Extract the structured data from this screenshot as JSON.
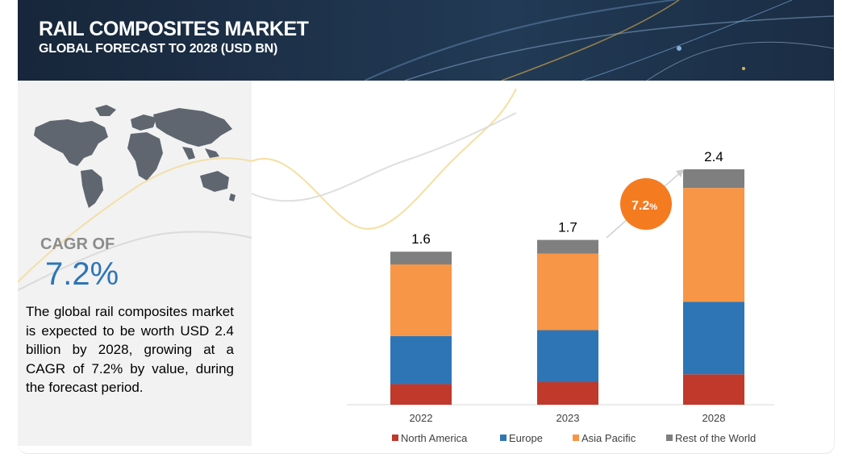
{
  "header": {
    "title": "RAIL COMPOSITES MARKET",
    "subtitle": "GLOBAL FORECAST TO 2028 (USD BN)"
  },
  "left_panel": {
    "cagr_label": "CAGR OF",
    "cagr_value": "7.2%",
    "description": "The global rail composites market is expected to be worth USD 2.4 billion by 2028, growing at a CAGR of 7.2% by value, during the forecast period."
  },
  "badge": {
    "value": "7.2",
    "unit": "%"
  },
  "colors": {
    "north_america": "#c0392b",
    "europe": "#2e75b6",
    "asia_pacific": "#f79646",
    "rest_of_world": "#7f7f7f",
    "badge": "#f47b20",
    "cagr_text": "#2e75b6"
  },
  "chart_data": {
    "type": "bar",
    "stacked": true,
    "categories": [
      "2022",
      "2023",
      "2028"
    ],
    "totals": [
      "1.6",
      "1.7",
      "2.4"
    ],
    "series": [
      {
        "name": "North America",
        "values": [
          0.21,
          0.23,
          0.31
        ]
      },
      {
        "name": "Europe",
        "values": [
          0.49,
          0.53,
          0.74
        ]
      },
      {
        "name": "Asia Pacific",
        "values": [
          0.73,
          0.78,
          1.16
        ]
      },
      {
        "name": "Rest of the World",
        "values": [
          0.13,
          0.14,
          0.19
        ]
      }
    ],
    "ylim": [
      0,
      2.4
    ],
    "grid": false,
    "legend_position": "bottom"
  }
}
